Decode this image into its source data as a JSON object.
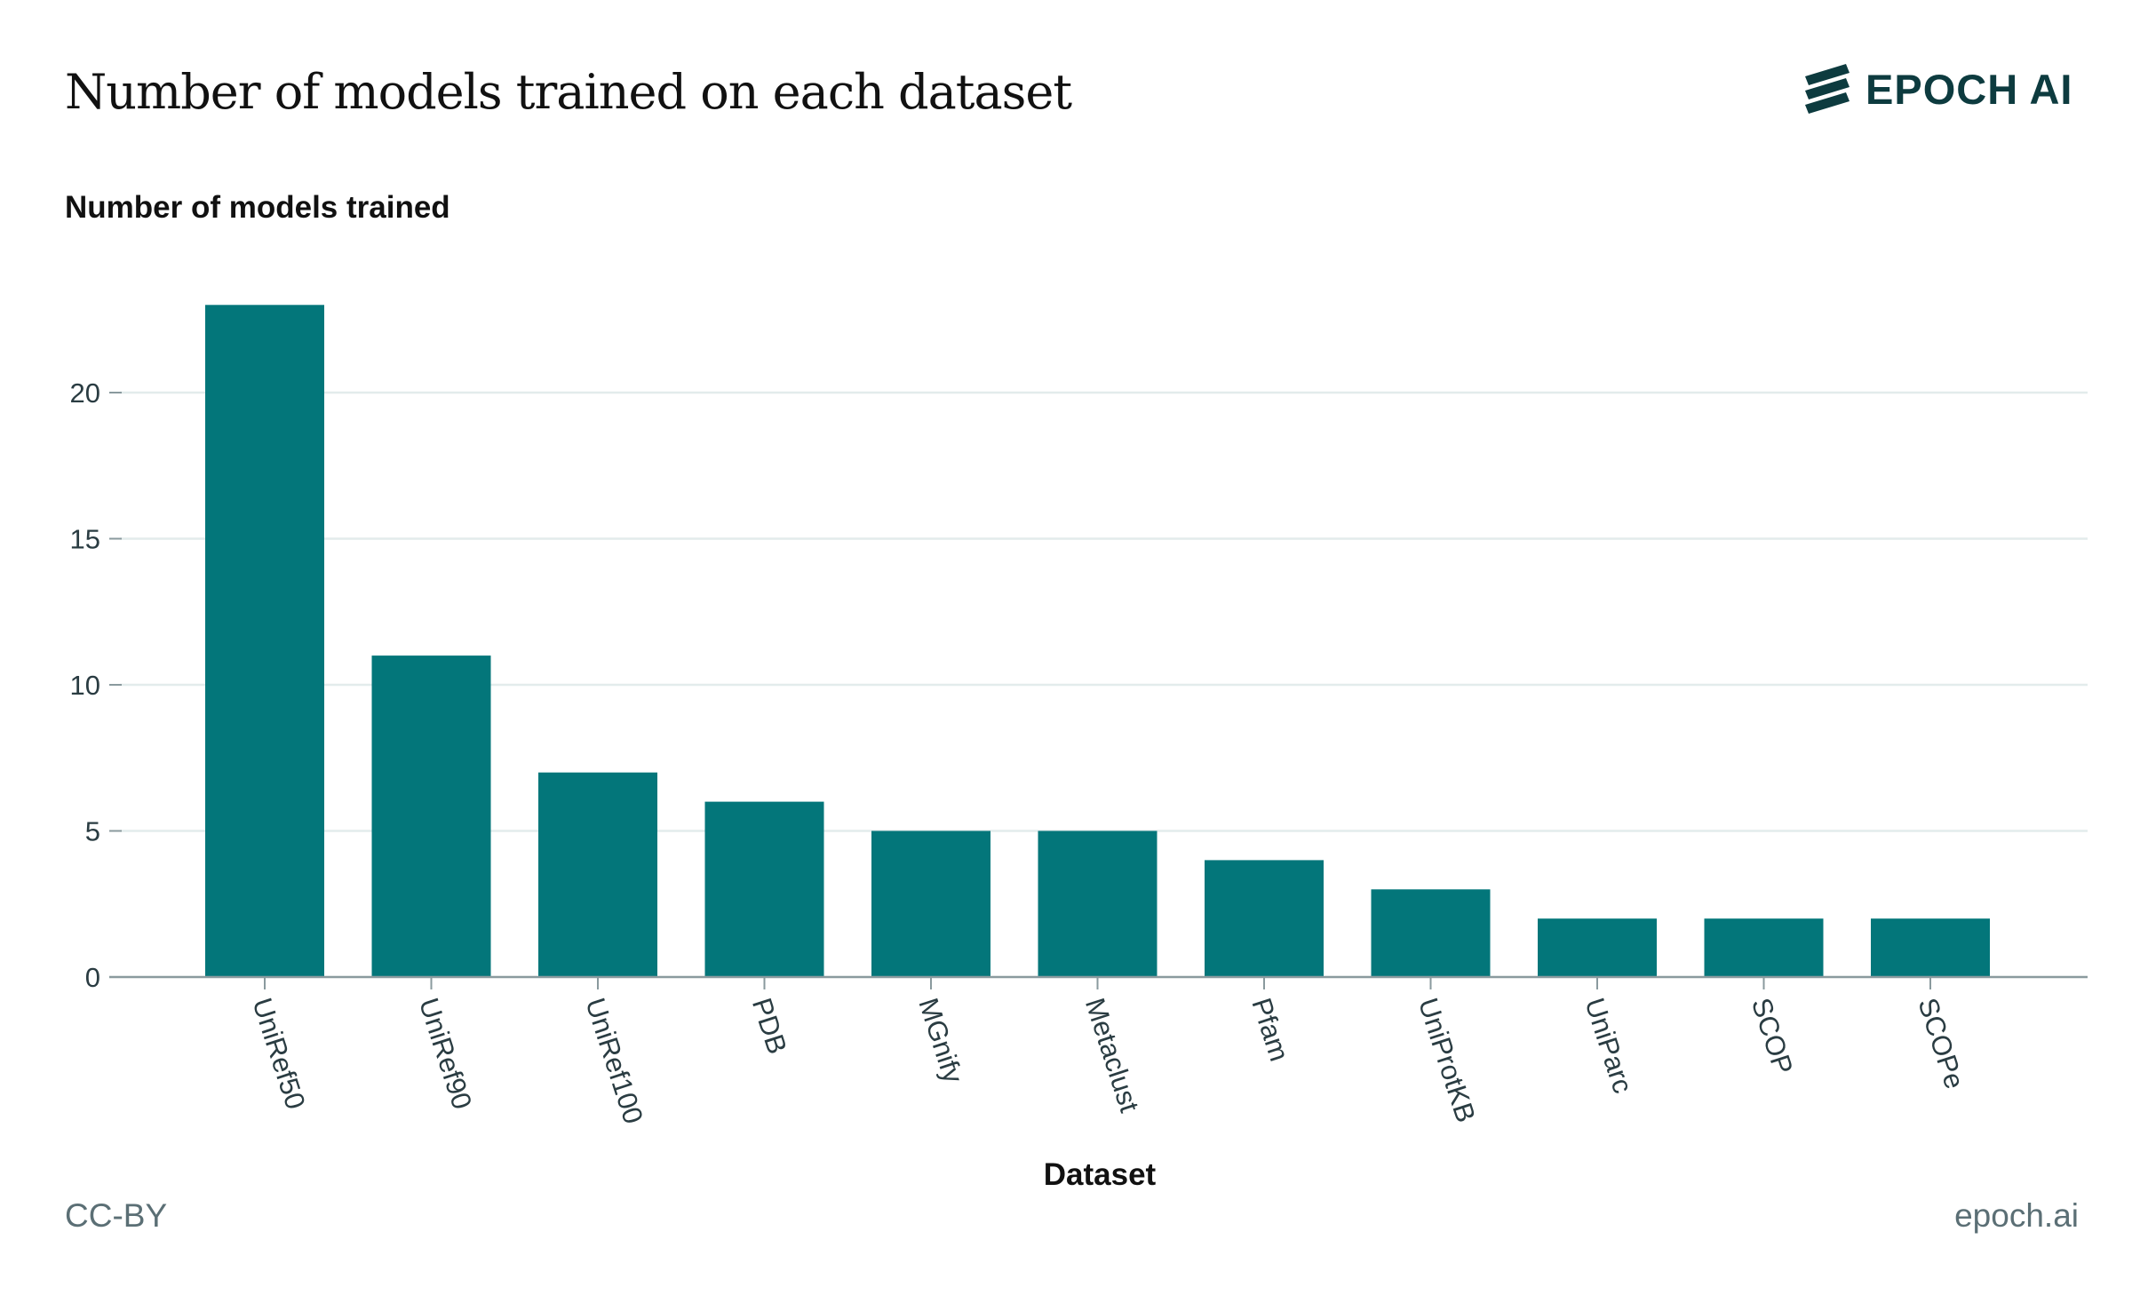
{
  "header": {
    "title": "Number of models trained on each dataset",
    "logo_text": "EPOCH AI",
    "logo_icon": "epoch-stripes-icon"
  },
  "footer": {
    "license": "CC-BY",
    "site": "epoch.ai"
  },
  "colors": {
    "bar": "#03767a",
    "grid": "#e3ecec",
    "axis": "#8a9a9e"
  },
  "chart_data": {
    "type": "bar",
    "title": "Number of models trained on each dataset",
    "xlabel": "Dataset",
    "ylabel": "Number of models trained",
    "categories": [
      "UniRef50",
      "UniRef90",
      "UniRef100",
      "PDB",
      "MGnify",
      "Metaclust",
      "Pfam",
      "UniProtKB",
      "UniParc",
      "SCOP",
      "SCOPe"
    ],
    "values": [
      23,
      11,
      7,
      6,
      5,
      5,
      4,
      3,
      2,
      2,
      2
    ],
    "ylim": [
      0,
      25
    ],
    "yticks": [
      0,
      5,
      10,
      15,
      20
    ],
    "grid": true,
    "legend": "none"
  }
}
